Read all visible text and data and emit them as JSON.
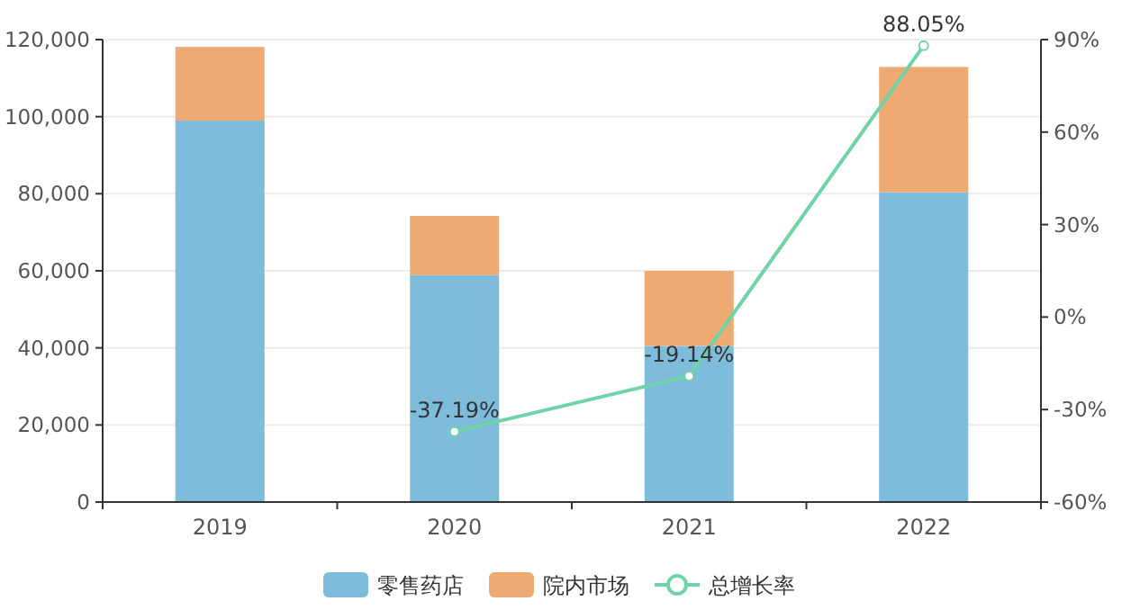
{
  "chart_data": {
    "type": "bar",
    "stacked": true,
    "categories": [
      "2019",
      "2020",
      "2021",
      "2022"
    ],
    "series": [
      {
        "name": "零售药店",
        "color": "#7dbddb",
        "values": [
          99000,
          58900,
          40500,
          80400
        ]
      },
      {
        "name": "院内市场",
        "color": "#eeaa72",
        "values": [
          19100,
          15350,
          19500,
          32500
        ]
      },
      {
        "name": "总增长率",
        "type": "line",
        "axis": "y2",
        "color": "#6fd3a8",
        "marker": "circle",
        "values": [
          null,
          -37.19,
          -19.14,
          88.05
        ],
        "value_labels": [
          null,
          "-37.19%",
          "-19.14%",
          "88.05%"
        ]
      }
    ],
    "ylim": [
      0,
      120000
    ],
    "yticks": [
      {
        "value": 0,
        "label": "0"
      },
      {
        "value": 20000,
        "label": "20,000"
      },
      {
        "value": 40000,
        "label": "40,000"
      },
      {
        "value": 60000,
        "label": "60,000"
      },
      {
        "value": 80000,
        "label": "80,000"
      },
      {
        "value": 100000,
        "label": "100,000"
      },
      {
        "value": 120000,
        "label": "120,000"
      }
    ],
    "y2lim": [
      -60,
      90
    ],
    "y2ticks": [
      {
        "value": -60,
        "label": "-60%"
      },
      {
        "value": -30,
        "label": "-30%"
      },
      {
        "value": 0,
        "label": "0%"
      },
      {
        "value": 30,
        "label": "30%"
      },
      {
        "value": 60,
        "label": "60%"
      },
      {
        "value": 90,
        "label": "90%"
      }
    ],
    "grid": "y",
    "legend": "bottom"
  }
}
